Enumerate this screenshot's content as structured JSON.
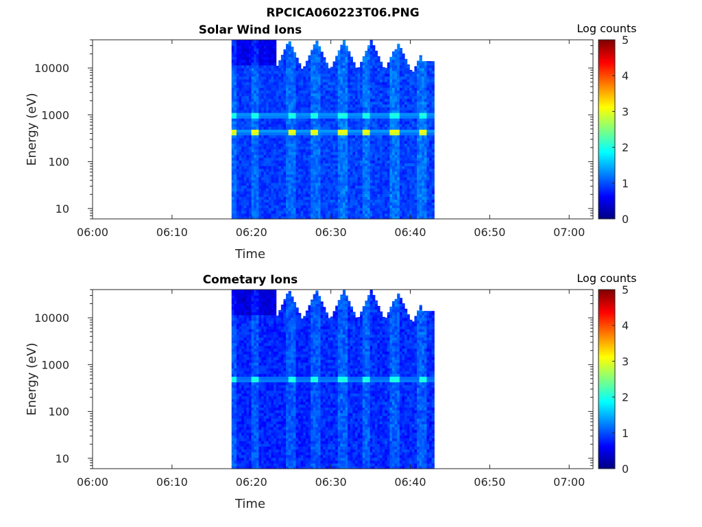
{
  "figure_title": "RPCICA060223T06.PNG",
  "chart_data": [
    {
      "type": "heatmap",
      "title": "Solar Wind Ions",
      "xlabel": "Time",
      "ylabel": "Energy (eV)",
      "x_ticks": [
        "06:00",
        "06:10",
        "06:20",
        "06:30",
        "06:40",
        "06:50",
        "07:00"
      ],
      "x_range": [
        "06:00",
        "07:03"
      ],
      "y_scale": "log",
      "y_ticks": [
        "10",
        "100",
        "1000",
        "10000"
      ],
      "y_range": [
        6,
        40000
      ],
      "colorbar": {
        "label": "Log counts",
        "ticks": [
          "0",
          "1",
          "2",
          "3",
          "4",
          "5"
        ],
        "range": [
          0,
          5
        ],
        "colormap": "jet"
      },
      "data_time_range": [
        "06:17:30",
        "06:43:00"
      ],
      "pulse_minutes": [
        17.5,
        20.5,
        25,
        28,
        31.5,
        34.5,
        38,
        41.5
      ],
      "band_energies_eV": [
        450,
        1000
      ],
      "peak_log_counts": 3.1,
      "background_log_counts": 0.9
    },
    {
      "type": "heatmap",
      "title": "Cometary Ions",
      "xlabel": "Time",
      "ylabel": "Energy (eV)",
      "x_ticks": [
        "06:00",
        "06:10",
        "06:20",
        "06:30",
        "06:40",
        "06:50",
        "07:00"
      ],
      "x_range": [
        "06:00",
        "07:03"
      ],
      "y_scale": "log",
      "y_ticks": [
        "10",
        "100",
        "1000",
        "10000"
      ],
      "y_range": [
        6,
        40000
      ],
      "colorbar": {
        "label": "Log counts",
        "ticks": [
          "0",
          "1",
          "2",
          "3",
          "4",
          "5"
        ],
        "range": [
          0,
          5
        ],
        "colormap": "jet"
      },
      "data_time_range": [
        "06:17:30",
        "06:43:00"
      ],
      "pulse_minutes": [
        17.5,
        20.5,
        25,
        28,
        31.5,
        34.5,
        38,
        41.5
      ],
      "band_energies_eV": [
        480
      ],
      "peak_log_counts": 2.1,
      "background_log_counts": 0.8
    }
  ]
}
